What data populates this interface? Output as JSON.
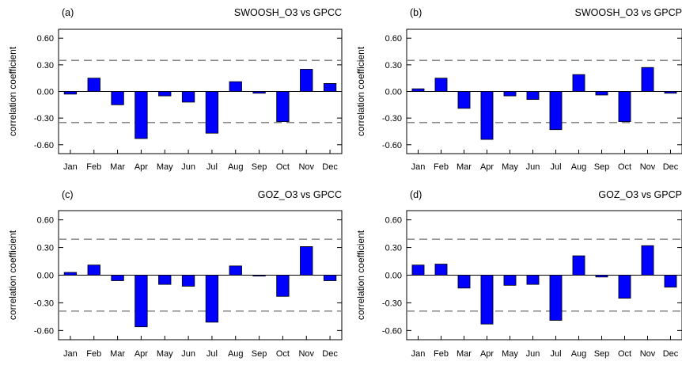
{
  "chart_data": [
    {
      "type": "bar",
      "panel_label": "(a)",
      "title": "SWOOSH_O3 vs GPCC",
      "ylabel": "correlation coefficient",
      "xlabel": "",
      "categories": [
        "Jan",
        "Feb",
        "Mar",
        "Apr",
        "May",
        "Jun",
        "Jul",
        "Aug",
        "Sep",
        "Oct",
        "Nov",
        "Dec"
      ],
      "values": [
        -0.03,
        0.15,
        -0.15,
        -0.53,
        -0.05,
        -0.12,
        -0.47,
        0.11,
        -0.02,
        -0.34,
        0.25,
        0.09
      ],
      "significance_lines": [
        0.35,
        -0.35
      ],
      "yticks": [
        "0.60",
        "0.30",
        "0.00",
        "-0.30",
        "-0.60"
      ],
      "ylim": [
        -0.7,
        0.7
      ],
      "bar_color": "#0000ff"
    },
    {
      "type": "bar",
      "panel_label": "(b)",
      "title": "SWOOSH_O3 vs GPCP",
      "ylabel": "correlation coefficient",
      "xlabel": "",
      "categories": [
        "Jan",
        "Feb",
        "Mar",
        "Apr",
        "May",
        "Jun",
        "Jul",
        "Aug",
        "Sep",
        "Oct",
        "Nov",
        "Dec"
      ],
      "values": [
        0.03,
        0.15,
        -0.19,
        -0.54,
        -0.05,
        -0.09,
        -0.43,
        0.19,
        -0.04,
        -0.34,
        0.27,
        -0.02
      ],
      "significance_lines": [
        0.35,
        -0.35
      ],
      "yticks": [
        "0.60",
        "0.30",
        "0.00",
        "-0.30",
        "-0.60"
      ],
      "ylim": [
        -0.7,
        0.7
      ],
      "bar_color": "#0000ff"
    },
    {
      "type": "bar",
      "panel_label": "(c)",
      "title": "GOZ_O3 vs GPCC",
      "ylabel": "correlation coefficient",
      "xlabel": "",
      "categories": [
        "Jan",
        "Feb",
        "Mar",
        "Apr",
        "May",
        "Jun",
        "Jul",
        "Aug",
        "Sep",
        "Oct",
        "Nov",
        "Dec"
      ],
      "values": [
        0.03,
        0.11,
        -0.06,
        -0.56,
        -0.1,
        -0.12,
        -0.51,
        0.1,
        -0.01,
        -0.23,
        0.31,
        -0.06
      ],
      "significance_lines": [
        0.39,
        -0.39
      ],
      "yticks": [
        "0.60",
        "0.30",
        "0.00",
        "-0.30",
        "-0.60"
      ],
      "ylim": [
        -0.7,
        0.7
      ],
      "bar_color": "#0000ff"
    },
    {
      "type": "bar",
      "panel_label": "(d)",
      "title": "GOZ_O3 vs GPCP",
      "ylabel": "correlation coefficient",
      "xlabel": "",
      "categories": [
        "Jan",
        "Feb",
        "Mar",
        "Apr",
        "May",
        "Jun",
        "Jul",
        "Aug",
        "Sep",
        "Oct",
        "Nov",
        "Dec"
      ],
      "values": [
        0.11,
        0.12,
        -0.14,
        -0.53,
        -0.11,
        -0.1,
        -0.49,
        0.21,
        -0.02,
        -0.25,
        0.32,
        -0.13
      ],
      "significance_lines": [
        0.39,
        -0.39
      ],
      "yticks": [
        "0.60",
        "0.30",
        "0.00",
        "-0.30",
        "-0.60"
      ],
      "ylim": [
        -0.7,
        0.7
      ],
      "bar_color": "#0000ff"
    }
  ]
}
